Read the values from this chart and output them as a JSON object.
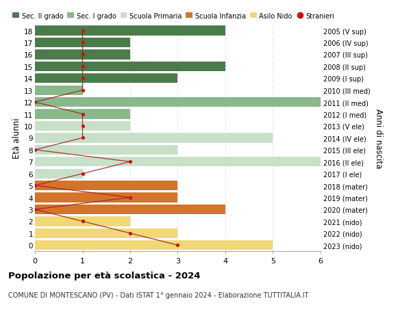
{
  "ages": [
    18,
    17,
    16,
    15,
    14,
    13,
    12,
    11,
    10,
    9,
    8,
    7,
    6,
    5,
    4,
    3,
    2,
    1,
    0
  ],
  "years": [
    "2005 (V sup)",
    "2006 (IV sup)",
    "2007 (III sup)",
    "2008 (II sup)",
    "2009 (I sup)",
    "2010 (III med)",
    "2011 (II med)",
    "2012 (I med)",
    "2013 (V ele)",
    "2014 (IV ele)",
    "2015 (III ele)",
    "2016 (II ele)",
    "2017 (I ele)",
    "2018 (mater)",
    "2019 (mater)",
    "2020 (mater)",
    "2021 (nido)",
    "2022 (nido)",
    "2023 (nido)"
  ],
  "bar_values": [
    4,
    2,
    2,
    4,
    3,
    1,
    6,
    2,
    2,
    5,
    3,
    6,
    1,
    3,
    3,
    4,
    2,
    3,
    5
  ],
  "bar_colors": [
    "#4a7c4a",
    "#4a7c4a",
    "#4a7c4a",
    "#4a7c4a",
    "#4a7c4a",
    "#8ab88a",
    "#8ab88a",
    "#8ab88a",
    "#c8dfc8",
    "#c8dfc8",
    "#c8dfc8",
    "#c8dfc8",
    "#c8dfc8",
    "#d4732a",
    "#d4732a",
    "#d4732a",
    "#f0d878",
    "#f0d878",
    "#f0d878"
  ],
  "stranieri_x": [
    1,
    1,
    1,
    1,
    1,
    1,
    0,
    1,
    1,
    1,
    0,
    2,
    1,
    0,
    2,
    0,
    1,
    2,
    3
  ],
  "legend_labels": [
    "Sec. II grado",
    "Sec. I grado",
    "Scuola Primaria",
    "Scuola Infanzia",
    "Asilo Nido",
    "Stranieri"
  ],
  "legend_colors": [
    "#4a7c4a",
    "#8ab88a",
    "#c8dfc8",
    "#d4732a",
    "#f0d878",
    "#cc1111"
  ],
  "title_bold": "Popolazione per età scolastica - 2024",
  "title_sub": "COMUNE DI MONTESCANO (PV) - Dati ISTAT 1° gennaio 2024 - Elaborazione TUTTITALIA.IT",
  "ylabel_left": "Età alunni",
  "ylabel_right": "Anni di nascita",
  "xlim": [
    0,
    6
  ],
  "background_color": "#ffffff",
  "grid_color": "#dddddd",
  "bar_height": 0.82
}
